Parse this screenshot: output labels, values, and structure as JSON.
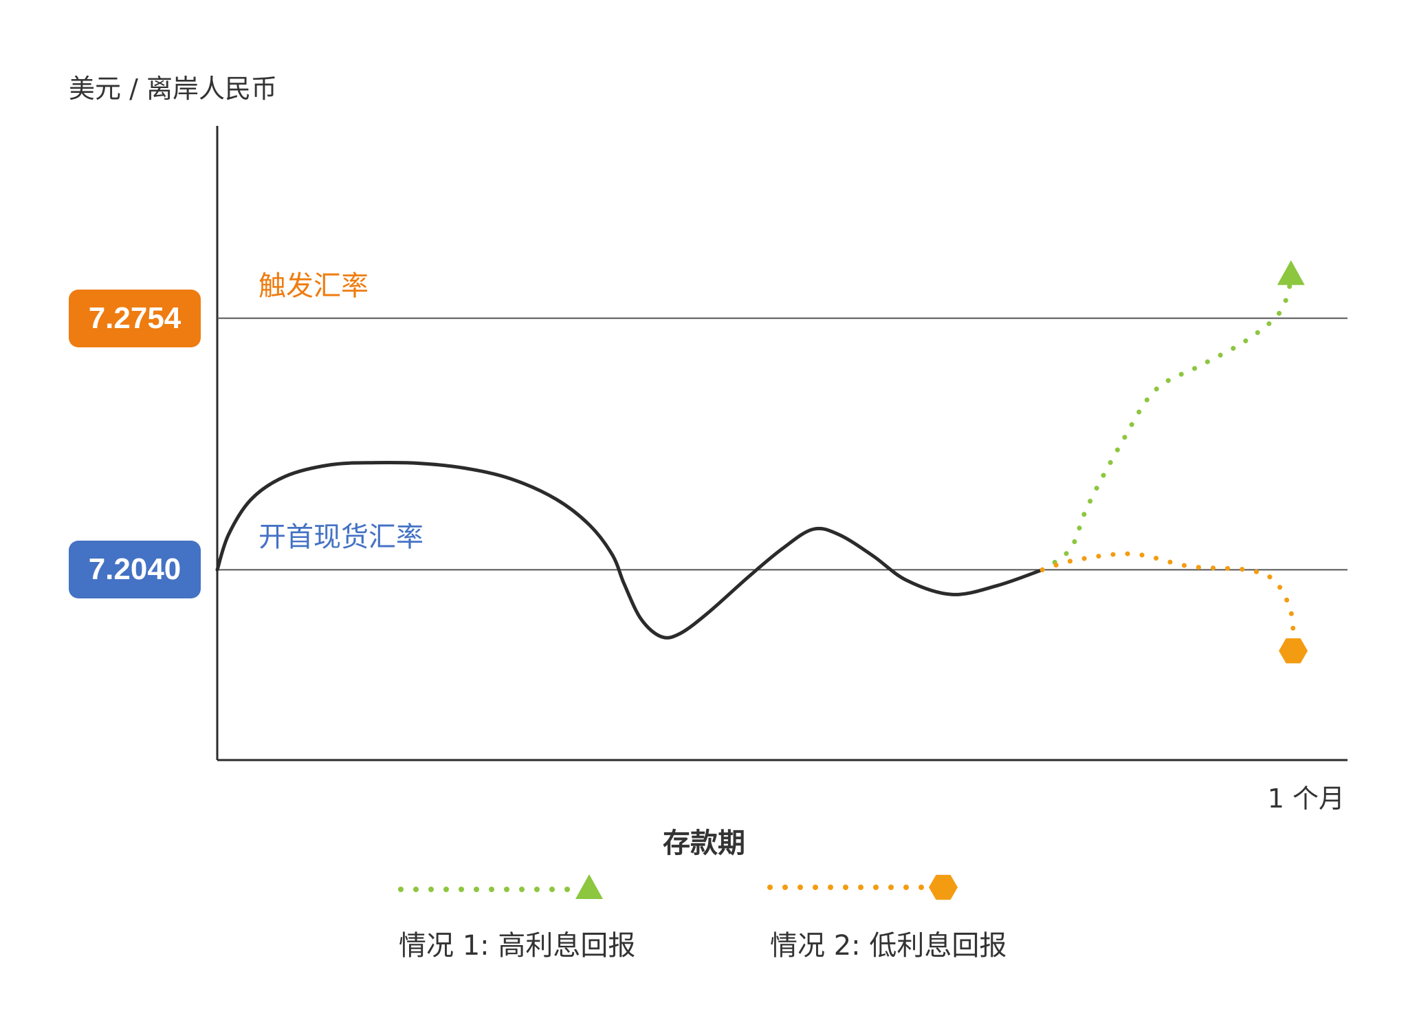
{
  "chart_data": {
    "type": "line",
    "ylabel": "美元 / 离岸人民币",
    "xlabel": "存款期",
    "x_tick_end": "1 个月",
    "reference_lines": [
      {
        "name": "trigger",
        "label": "触发汇率",
        "value": 7.2754,
        "value_label": "7.2754",
        "color": "#ee7c10"
      },
      {
        "name": "spot",
        "label": "开首现货汇率",
        "value": 7.204,
        "value_label": "7.2040",
        "color": "#4472c4"
      }
    ],
    "ylim": [
      7.15,
      7.33
    ],
    "xlim": [
      0,
      1
    ],
    "series": [
      {
        "name": "",
        "style": "solid",
        "color": "#2b2b2b",
        "points": [
          [
            0.0,
            7.204
          ],
          [
            0.01,
            7.214
          ],
          [
            0.03,
            7.224
          ],
          [
            0.06,
            7.2305
          ],
          [
            0.1,
            7.2338
          ],
          [
            0.14,
            7.2344
          ],
          [
            0.18,
            7.2342
          ],
          [
            0.22,
            7.2328
          ],
          [
            0.26,
            7.2298
          ],
          [
            0.3,
            7.224
          ],
          [
            0.33,
            7.2165
          ],
          [
            0.35,
            7.208
          ],
          [
            0.36,
            7.2
          ],
          [
            0.375,
            7.19
          ],
          [
            0.393,
            7.185
          ],
          [
            0.41,
            7.186
          ],
          [
            0.435,
            7.192
          ],
          [
            0.47,
            7.202
          ],
          [
            0.5,
            7.21
          ],
          [
            0.527,
            7.2155
          ],
          [
            0.55,
            7.214
          ],
          [
            0.58,
            7.208
          ],
          [
            0.61,
            7.201
          ],
          [
            0.65,
            7.197
          ],
          [
            0.69,
            7.1995
          ],
          [
            0.73,
            7.204
          ]
        ]
      },
      {
        "name": "情况 1: 高利息回报",
        "style": "dotted",
        "color": "#8dc63f",
        "marker": "triangle",
        "points": [
          [
            0.73,
            7.204
          ],
          [
            0.755,
            7.21
          ],
          [
            0.77,
            7.222
          ],
          [
            0.8,
            7.24
          ],
          [
            0.83,
            7.255
          ],
          [
            0.87,
            7.262
          ],
          [
            0.91,
            7.269
          ],
          [
            0.94,
            7.277
          ],
          [
            0.95,
            7.286
          ]
        ]
      },
      {
        "name": "情况 2: 低利息回报",
        "style": "dotted",
        "color": "#f39c12",
        "marker": "hexagon",
        "points": [
          [
            0.73,
            7.204
          ],
          [
            0.76,
            7.2068
          ],
          [
            0.81,
            7.2085
          ],
          [
            0.86,
            7.205
          ],
          [
            0.91,
            7.204
          ],
          [
            0.935,
            7.201
          ],
          [
            0.95,
            7.192
          ],
          [
            0.952,
            7.181
          ]
        ]
      }
    ],
    "legend": [
      {
        "label": "情况 1: 高利息回报",
        "color": "#8dc63f",
        "marker": "triangle"
      },
      {
        "label": "情况 2: 低利息回报",
        "color": "#f39c12",
        "marker": "hexagon"
      }
    ]
  }
}
